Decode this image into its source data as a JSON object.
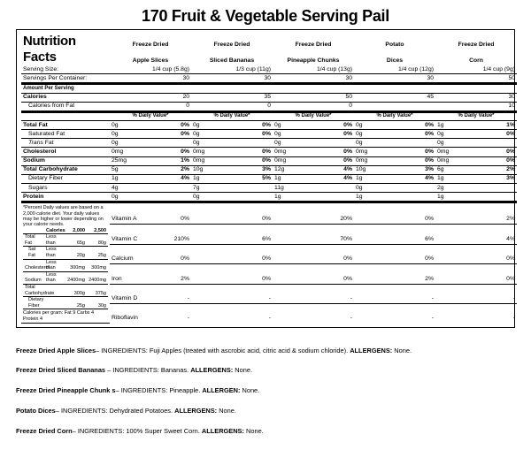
{
  "title": "170 Fruit & Vegetable Serving Pail",
  "nfTitle": "Nutrition Facts",
  "headers": {
    "servingSize": "Serving Size:",
    "servingsPer": "Servings Per Container:",
    "amountPer": "Amount Per Serving",
    "dailyValue": "% Daily Value*"
  },
  "products": [
    {
      "name1": "Freeze Dried",
      "name2": "Apple Slices",
      "ss": "1/4 cup (5.8g)",
      "spc": "30"
    },
    {
      "name1": "Freeze Dried",
      "name2": "Sliced Bananas",
      "ss": "1/3 cup (11g)",
      "spc": "30"
    },
    {
      "name1": "Freeze Dried",
      "name2": "Pineapple Chunks",
      "ss": "1/4 cup (13g)",
      "spc": "30"
    },
    {
      "name1": "Potato",
      "name2": "Dices",
      "ss": "1/4 cup (12g)",
      "spc": "30"
    },
    {
      "name1": "Freeze Dried",
      "name2": "Corn",
      "ss": "1/4 cup (9g)",
      "spc": "50"
    }
  ],
  "rows": [
    {
      "label": "Calories",
      "bold": true,
      "single": true,
      "v": [
        "20",
        "35",
        "50",
        "45",
        "30"
      ]
    },
    {
      "label": "Calories from Fat",
      "single": true,
      "indent": true,
      "v": [
        "0",
        "0",
        "0",
        "",
        "10"
      ],
      "th": true
    },
    {
      "dvHeader": true
    },
    {
      "label": "Total Fat",
      "bold": true,
      "a": [
        "0g",
        "0g",
        "0g",
        "0g",
        "1g"
      ],
      "d": [
        "0%",
        "0%",
        "0%",
        "0%",
        "1%"
      ]
    },
    {
      "label": "Saturated Fat",
      "indent": true,
      "a": [
        "0g",
        "0g",
        "0g",
        "0g",
        "0g"
      ],
      "d": [
        "0%",
        "0%",
        "0%",
        "0%",
        "0%"
      ]
    },
    {
      "label": "Trans Fat",
      "i": true,
      "indent": true,
      "a": [
        "0g",
        "0g",
        "0g",
        "0g",
        "0g"
      ],
      "d": [
        "",
        "",
        "",
        "",
        ""
      ]
    },
    {
      "label": "Cholesterol",
      "bold": true,
      "a": [
        "0mg",
        "0mg",
        "0mg",
        "0mg",
        "0mg"
      ],
      "d": [
        "0%",
        "0%",
        "0%",
        "0%",
        "0%"
      ]
    },
    {
      "label": "Sodium",
      "bold": true,
      "a": [
        "25mg",
        "0mg",
        "0mg",
        "0mg",
        "0mg"
      ],
      "d": [
        "1%",
        "0%",
        "0%",
        "0%",
        "0%"
      ]
    },
    {
      "label": "Total Carbohydrate",
      "bold": true,
      "a": [
        "5g",
        "10g",
        "12g",
        "10g",
        "6g"
      ],
      "d": [
        "2%",
        "3%",
        "4%",
        "3%",
        "2%"
      ]
    },
    {
      "label": "Dietary Fiber",
      "indent": true,
      "a": [
        "1g",
        "1g",
        "1g",
        "1g",
        "1g"
      ],
      "d": [
        "4%",
        "5%",
        "4%",
        "4%",
        "3%"
      ]
    },
    {
      "label": "Sugars",
      "indent": true,
      "a": [
        "4g",
        "7g",
        "11g",
        "0g",
        "2g"
      ],
      "d": [
        "",
        "",
        "",
        "",
        ""
      ]
    },
    {
      "label": "Protein",
      "bold": true,
      "a": [
        "0g",
        "0g",
        "1g",
        "1g",
        "1g"
      ],
      "d": [
        "",
        "",
        "",
        "",
        ""
      ],
      "th": true
    }
  ],
  "vitamins": [
    {
      "label": "Vitamin A",
      "d": [
        "0%",
        "0%",
        "20%",
        "0%",
        "2%"
      ]
    },
    {
      "label": "Vitamin C",
      "d": [
        "210%",
        "6%",
        "70%",
        "6%",
        "4%"
      ]
    },
    {
      "label": "Calcium",
      "d": [
        "0%",
        "0%",
        "0%",
        "0%",
        "0%"
      ]
    },
    {
      "label": "Iron",
      "d": [
        "2%",
        "0%",
        "0%",
        "2%",
        "0%"
      ]
    },
    {
      "label": "Vitamin D",
      "d": [
        "-",
        "-",
        "-",
        "-",
        "-"
      ]
    },
    {
      "label": "Riboflavin",
      "d": [
        "-",
        "-",
        "-",
        "-",
        "-"
      ]
    }
  ],
  "footnote1": "*Percent Daily values are based on a 2,000 calorie diet. Your daily values may be higher or lower depending on your calorie needs.",
  "ftHead": [
    "Calories",
    "2,000",
    "2,500"
  ],
  "ftRows": [
    [
      "Total Fat",
      "Less than",
      "65g",
      "80g"
    ],
    [
      "Sat Fat",
      "Less than",
      "20g",
      "25g"
    ],
    [
      "Cholesterol",
      "Less than",
      "300mg",
      "300mg"
    ],
    [
      "Sodium",
      "Less than",
      "2400mg",
      "2400mg"
    ],
    [
      "Total Carbohydrate",
      "",
      "300g",
      "375g"
    ],
    [
      "Dietary Fiber",
      "",
      "25g",
      "30g"
    ]
  ],
  "cpg": "Calories per gram:  Fat 9       Carbs 4       Protein 4",
  "ingredients": [
    {
      "name": "Freeze Dried Apple Slices",
      "body": "– INGREDIENTS: Fuji Apples (treated with ascrobic acid, citric acid & sodium chloride).  ",
      "al": "ALLERGENS:",
      "alv": "  None."
    },
    {
      "name": "Freeze Dried Sliced Bananas",
      "body": " – INGREDIENTS: Bananas.  ",
      "al": "ALLERGENS:",
      "alv": "  None."
    },
    {
      "name": "Freeze Dried Pineapple Chunk s",
      "body": "– INGREDIENTS: Pineapple.  ",
      "al": "ALLERGEN:",
      "alv": "  None."
    },
    {
      "name": "Potato Dices",
      "body": "– INGREDIENTS: Dehydrated Potatoes.  ",
      "al": "ALLERGENS:",
      "alv": "  None."
    },
    {
      "name": "Freeze Dried Corn",
      "body": "– INGREDIENTS: 100% Super Sweet Corn.  ",
      "al": "ALLERGENS:",
      "alv": "  None."
    }
  ]
}
